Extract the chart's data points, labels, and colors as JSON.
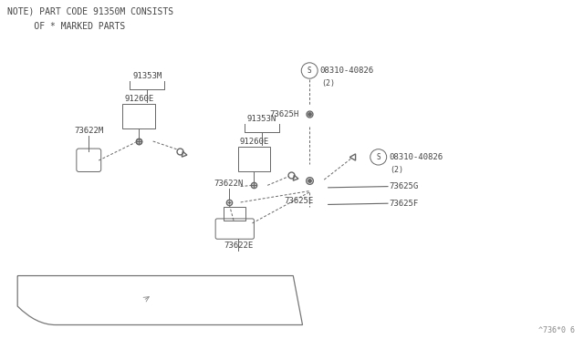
{
  "background_color": "#ffffff",
  "note_line1": "NOTE) PART CODE 91350M CONSISTS",
  "note_line2": "     OF * MARKED PARTS",
  "footer_text": "^736*0 6",
  "label_fontsize": 6.5,
  "note_fontsize": 7.0,
  "line_color": "#666666",
  "text_color": "#444444",
  "panel": {
    "points_x": [
      0.08,
      0.52,
      5.85,
      5.42,
      0.08
    ],
    "points_y": [
      2.05,
      0.18,
      0.18,
      2.05,
      2.05
    ]
  }
}
